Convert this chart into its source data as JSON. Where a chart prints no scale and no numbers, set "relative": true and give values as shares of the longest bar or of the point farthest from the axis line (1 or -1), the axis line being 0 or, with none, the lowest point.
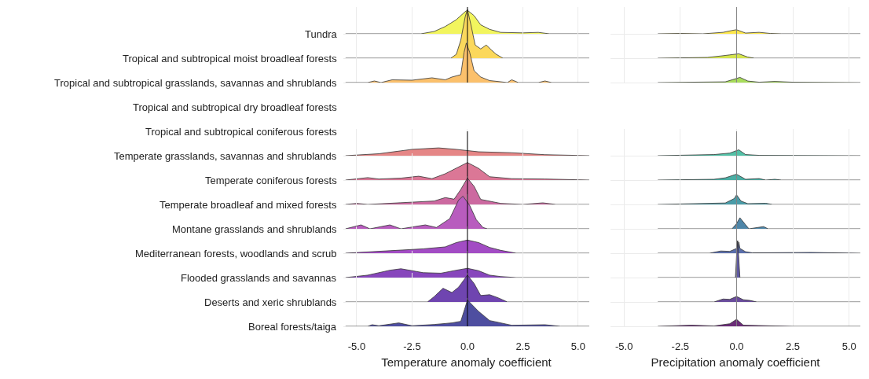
{
  "chart_data": [
    {
      "type": "area",
      "relative": true,
      "ylabel": "Tundra",
      "grid": "x",
      "tick_labels": false,
      "color": "#f2f55e",
      "xlim": [
        -5.6,
        5.5
      ],
      "xticks": [
        -5,
        -2.5,
        0,
        2.5,
        5
      ],
      "ref_lines": [
        {
          "axis": "x",
          "value": 0,
          "color": "#000000"
        }
      ],
      "x": [
        -5.5,
        -2.1,
        -1.5,
        -1.0,
        -0.5,
        -0.1,
        0,
        0.3,
        0.6,
        1.0,
        1.5,
        2.5,
        3.2,
        3.7,
        5.5
      ],
      "values": [
        0,
        0,
        0.1,
        0.31,
        0.6,
        0.94,
        1,
        0.77,
        0.38,
        0.19,
        0.06,
        0.04,
        0.06,
        0,
        0
      ]
    },
    {
      "type": "area",
      "relative": true,
      "ylabel": "Tropical and subtropical moist broadleaf forests",
      "grid": "x",
      "tick_labels": false,
      "color": "#fbd85c",
      "xlim": [
        -5.6,
        5.5
      ],
      "xticks": [
        -5,
        -2.5,
        0,
        2.5,
        5
      ],
      "ref_lines": [
        {
          "axis": "x",
          "value": 0,
          "color": "#000000"
        }
      ],
      "x": [
        -5.5,
        -0.75,
        -0.5,
        -0.3,
        -0.1,
        0,
        0.15,
        0.35,
        0.6,
        0.85,
        1.1,
        1.3,
        1.6,
        5.5
      ],
      "values": [
        0,
        0,
        0.08,
        0.37,
        0.85,
        1.0,
        0.7,
        0.27,
        0.19,
        0.27,
        0.16,
        0.08,
        0,
        0
      ]
    },
    {
      "type": "area",
      "relative": true,
      "ylabel": "Tropical and subtropical grasslands, savannas and shrublands",
      "grid": "x",
      "tick_labels": false,
      "color": "#fbc06c",
      "xlim": [
        -5.6,
        5.5
      ],
      "xticks": [
        -5,
        -2.5,
        0,
        2.5,
        5
      ],
      "ref_lines": [
        {
          "axis": "x",
          "value": 0,
          "color": "#000000"
        }
      ],
      "x": [
        -5.5,
        -4.5,
        -4.2,
        -3.9,
        -3.4,
        -2.5,
        -1.6,
        -1.0,
        -0.7,
        -0.3,
        -0.15,
        -0.05,
        0.1,
        0.3,
        0.6,
        1.0,
        1.5,
        1.8,
        2.0,
        2.3,
        3.2,
        3.5,
        3.8,
        5.5
      ],
      "values": [
        0,
        0,
        0.04,
        0,
        0.07,
        0.06,
        0.12,
        0.07,
        0.14,
        0.2,
        0.77,
        1,
        0.77,
        0.3,
        0.14,
        0.05,
        0.02,
        0,
        0.07,
        0,
        0,
        0.04,
        0,
        0
      ]
    },
    {
      "type": "other",
      "ylabel": "Tropical and subtropical dry broadleaf forests"
    },
    {
      "type": "other",
      "ylabel": "Tropical and subtropical coniferous forests"
    },
    {
      "type": "area",
      "relative": true,
      "ylabel": "Temperate grasslands, savannas and shrublands",
      "grid": "x",
      "tick_labels": false,
      "color": "#e58686",
      "xlim": [
        -5.6,
        5.5
      ],
      "xticks": [
        -5,
        -2.5,
        0,
        2.5,
        5
      ],
      "ref_lines": [
        {
          "axis": "x",
          "value": 0,
          "color": "#000000"
        }
      ],
      "x": [
        -5.5,
        -4.0,
        -2.5,
        -1.3,
        -0.5,
        0.5,
        2.0,
        3.5,
        5.5
      ],
      "values": [
        0,
        0.25,
        0.81,
        1,
        0.81,
        0.5,
        0.38,
        0.13,
        0
      ]
    },
    {
      "type": "area",
      "relative": true,
      "ylabel": "Temperate coniferous forests",
      "grid": "x",
      "tick_labels": false,
      "color": "#db7796",
      "xlim": [
        -5.6,
        5.5
      ],
      "xticks": [
        -5,
        -2.5,
        0,
        2.5,
        5
      ],
      "ref_lines": [
        {
          "axis": "x",
          "value": 0,
          "color": "#000000"
        }
      ],
      "x": [
        -5.5,
        -4.5,
        -4.0,
        -3.0,
        -2.2,
        -1.6,
        -1.0,
        0,
        0.5,
        1.0,
        2.0,
        3.5,
        5.5
      ],
      "values": [
        0,
        0.14,
        0.06,
        0.11,
        0.22,
        0.08,
        0.36,
        1,
        0.67,
        0.19,
        0.08,
        0.06,
        0
      ]
    },
    {
      "type": "area",
      "relative": true,
      "ylabel": "Temperate broadleaf and mixed forests",
      "grid": "x",
      "tick_labels": false,
      "color": "#cc69a0",
      "xlim": [
        -5.6,
        5.5
      ],
      "xticks": [
        -5,
        -2.5,
        0,
        2.5,
        5
      ],
      "ref_lines": [
        {
          "axis": "x",
          "value": 0,
          "color": "#000000"
        }
      ],
      "x": [
        -5.5,
        -5.0,
        -4.5,
        -1.5,
        -1.0,
        -0.6,
        -0.3,
        0,
        0.3,
        0.6,
        1.5,
        2.5,
        3.4,
        4.0,
        5.5
      ],
      "values": [
        0,
        0.04,
        0,
        0.13,
        0.26,
        0.2,
        0.57,
        1,
        0.69,
        0.19,
        0.04,
        0,
        0.06,
        0,
        0
      ]
    },
    {
      "type": "area",
      "relative": true,
      "ylabel": "Montane grasslands and shrublands",
      "grid": "x",
      "tick_labels": false,
      "color": "#b85cbe",
      "xlim": [
        -5.6,
        5.5
      ],
      "xticks": [
        -5,
        -2.5,
        0,
        2.5,
        5
      ],
      "ref_lines": [
        {
          "axis": "x",
          "value": 0,
          "color": "#000000"
        }
      ],
      "x": [
        -5.5,
        -4.8,
        -4.4,
        -3.5,
        -3.0,
        -1.9,
        -1.4,
        -0.8,
        -0.4,
        -0.2,
        0.1,
        0.4,
        0.7,
        0.9,
        5.5
      ],
      "values": [
        0,
        0.12,
        0,
        0.12,
        0,
        0.12,
        0.04,
        0.31,
        0.88,
        1,
        0.72,
        0.28,
        0.04,
        0,
        0
      ]
    },
    {
      "type": "area",
      "relative": true,
      "ylabel": "Mediterranean forests, woodlands and scrub",
      "grid": "x",
      "tick_labels": false,
      "color": "#a24cc4",
      "xlim": [
        -5.6,
        5.5
      ],
      "xticks": [
        -5,
        -2.5,
        0,
        2.5,
        5
      ],
      "ref_lines": [
        {
          "axis": "x",
          "value": 0,
          "color": "#000000"
        }
      ],
      "x": [
        -5.5,
        -3.5,
        -2.0,
        -1.0,
        -0.5,
        0,
        0.5,
        1.0,
        1.5,
        2.2,
        5.5
      ],
      "values": [
        0,
        0.19,
        0.33,
        0.48,
        0.81,
        1,
        0.81,
        0.44,
        0.22,
        0,
        0
      ]
    },
    {
      "type": "area",
      "relative": true,
      "ylabel": "Flooded grasslands and savannas",
      "grid": "x",
      "tick_labels": false,
      "color": "#8746bc",
      "xlim": [
        -5.6,
        5.5
      ],
      "xticks": [
        -5,
        -2.5,
        0,
        2.5,
        5
      ],
      "ref_lines": [
        {
          "axis": "x",
          "value": 0,
          "color": "#000000"
        }
      ],
      "x": [
        -5.5,
        -4.5,
        -3.5,
        -3.0,
        -2.0,
        -1.2,
        -0.5,
        0,
        0.5,
        1.0,
        1.5,
        2.2,
        5.5
      ],
      "values": [
        0,
        0.26,
        0.79,
        0.95,
        0.53,
        0.47,
        0.79,
        1,
        0.74,
        0.26,
        0.11,
        0,
        0
      ]
    },
    {
      "type": "area",
      "relative": true,
      "ylabel": "Deserts and xeric shrublands",
      "grid": "x",
      "tick_labels": false,
      "color": "#6f45b0",
      "xlim": [
        -5.6,
        5.5
      ],
      "xticks": [
        -5,
        -2.5,
        0,
        2.5,
        5
      ],
      "ref_lines": [
        {
          "axis": "x",
          "value": 0,
          "color": "#000000"
        }
      ],
      "x": [
        -5.5,
        -1.8,
        -1.5,
        -1.1,
        -0.7,
        -0.4,
        0,
        0.3,
        0.6,
        1.0,
        1.4,
        1.8,
        5.5
      ],
      "values": [
        0,
        0,
        0.2,
        0.51,
        0.35,
        0.55,
        1,
        0.69,
        0.24,
        0.27,
        0.15,
        0,
        0
      ]
    },
    {
      "type": "area",
      "relative": true,
      "ylabel": "Boreal forests/taiga",
      "xlabel": "Temperature anomaly coefficient",
      "grid": "x",
      "tick_labels": "x",
      "color": "#4e4ea0",
      "xlim": [
        -5.6,
        5.5
      ],
      "xticks": [
        {
          "value": -5,
          "label": "-5.0"
        },
        {
          "value": -2.5,
          "label": "-2.5"
        },
        {
          "value": 0,
          "label": "0.0"
        },
        {
          "value": 2.5,
          "label": "2.5"
        },
        {
          "value": 5,
          "label": "5.0"
        }
      ],
      "ref_lines": [
        {
          "axis": "x",
          "value": 0,
          "color": "#000000"
        }
      ],
      "x": [
        -5.5,
        -4.5,
        -4.3,
        -4.0,
        -3.1,
        -2.5,
        -1.5,
        -0.7,
        -0.3,
        -0.1,
        0,
        0.5,
        1.0,
        1.5,
        2.0,
        3.5,
        4.2,
        5.5
      ],
      "values": [
        0,
        0,
        0.06,
        0.02,
        0.13,
        0.02,
        0.07,
        0.13,
        0.19,
        0.72,
        1,
        0.57,
        0.22,
        0.13,
        0.04,
        0.06,
        0,
        0
      ]
    },
    {
      "type": "area",
      "relative": true,
      "grid": "x",
      "tick_labels": false,
      "color": "#fde74c",
      "xlim": [
        -5.6,
        5.5
      ],
      "xticks": [
        -5,
        -2.5,
        0,
        2.5,
        5
      ],
      "ref_lines": [
        {
          "axis": "x",
          "value": 0,
          "color": "#808080"
        }
      ],
      "x": [
        -3.5,
        -2.5,
        -1.5,
        -0.6,
        -0.2,
        0,
        0.4,
        1.0,
        1.5,
        2.0,
        5.5
      ],
      "values": [
        0,
        0.09,
        0,
        0.36,
        0.82,
        1,
        0.18,
        0.36,
        0.09,
        0,
        0
      ]
    },
    {
      "type": "area",
      "relative": true,
      "grid": "x",
      "tick_labels": false,
      "color": "#d4e44e",
      "xlim": [
        -5.6,
        5.5
      ],
      "xticks": [
        -5,
        -2.5,
        0,
        2.5,
        5
      ],
      "ref_lines": [
        {
          "axis": "x",
          "value": 0,
          "color": "#808080"
        }
      ],
      "x": [
        -3.5,
        -1.3,
        -0.7,
        -0.3,
        0.1,
        0.5,
        0.8,
        5.5
      ],
      "values": [
        0,
        0.17,
        0.5,
        0.75,
        1,
        0.25,
        0,
        0
      ]
    },
    {
      "type": "area",
      "relative": true,
      "grid": "x",
      "tick_labels": false,
      "color": "#a8dc5a",
      "xlim": [
        -5.6,
        5.5
      ],
      "xticks": [
        -5,
        -2.5,
        0,
        2.5,
        5
      ],
      "ref_lines": [
        {
          "axis": "x",
          "value": 0,
          "color": "#808080"
        }
      ],
      "x": [
        -3.5,
        -0.5,
        0,
        0.15,
        0.5,
        1.0,
        1.7,
        2.5,
        5.5
      ],
      "values": [
        0,
        0.14,
        0.79,
        1,
        0.29,
        0.07,
        0.21,
        0.07,
        0
      ]
    },
    {
      "type": "area",
      "relative": true,
      "grid": "x",
      "tick_labels": false,
      "color": "#53c0a6",
      "xlim": [
        -5.6,
        5.5
      ],
      "xticks": [
        -5,
        -2.5,
        0,
        2.5,
        5
      ],
      "ref_lines": [
        {
          "axis": "x",
          "value": 0,
          "color": "#808080"
        }
      ],
      "x": [
        -3.5,
        -1.0,
        -0.3,
        0.1,
        0.4,
        1.0,
        5.5
      ],
      "values": [
        0,
        0.19,
        0.44,
        1,
        0.19,
        0.06,
        0
      ]
    },
    {
      "type": "area",
      "relative": true,
      "grid": "x",
      "tick_labels": false,
      "color": "#4aaea4",
      "xlim": [
        -5.6,
        5.5
      ],
      "xticks": [
        -5,
        -2.5,
        0,
        2.5,
        5
      ],
      "ref_lines": [
        {
          "axis": "x",
          "value": 0,
          "color": "#808080"
        }
      ],
      "x": [
        -3.5,
        -1.0,
        -0.5,
        0,
        0.4,
        1.0,
        1.3,
        1.7,
        2.0,
        5.5
      ],
      "values": [
        0,
        0.13,
        0.38,
        1,
        0.13,
        0.25,
        0,
        0.13,
        0,
        0
      ]
    },
    {
      "type": "area",
      "relative": true,
      "grid": "x",
      "tick_labels": false,
      "color": "#4a9ca8",
      "xlim": [
        -5.6,
        5.5
      ],
      "xticks": [
        -5,
        -2.5,
        0,
        2.5,
        5
      ],
      "ref_lines": [
        {
          "axis": "x",
          "value": 0,
          "color": "#808080"
        }
      ],
      "x": [
        -3.5,
        -0.5,
        -0.1,
        0,
        0.2,
        0.5,
        1.3,
        1.6,
        5.5
      ],
      "values": [
        0,
        0.15,
        0.62,
        1,
        0.35,
        0.08,
        0.12,
        0,
        0
      ]
    },
    {
      "type": "area",
      "relative": true,
      "grid": "x",
      "tick_labels": false,
      "color": "#4f86a8",
      "xlim": [
        -5.6,
        5.5
      ],
      "xticks": [
        -5,
        -2.5,
        0,
        2.5,
        5
      ],
      "ref_lines": [
        {
          "axis": "x",
          "value": 0,
          "color": "#808080"
        }
      ],
      "x": [
        -3.5,
        -0.2,
        0,
        0.15,
        0.4,
        0.55,
        1.2,
        1.4,
        5.5
      ],
      "values": [
        0,
        0,
        0.47,
        1,
        0.37,
        0,
        0.2,
        0,
        0
      ]
    },
    {
      "type": "area",
      "relative": true,
      "grid": "x",
      "tick_labels": false,
      "color": "#5a6eaa",
      "xlim": [
        -5.6,
        5.5
      ],
      "xticks": [
        -5,
        -2.5,
        0,
        2.5,
        5
      ],
      "ref_lines": [
        {
          "axis": "x",
          "value": 0,
          "color": "#808080"
        }
      ],
      "x": [
        -3.5,
        -1.2,
        -0.7,
        -0.3,
        0,
        0.03,
        0.07,
        0.1,
        0.15,
        0.4,
        0.7,
        3.3,
        5.5
      ],
      "values": [
        0,
        0,
        0.18,
        0.15,
        0.39,
        1,
        0.39,
        0.91,
        0.39,
        0.12,
        0.03,
        0.06,
        0
      ]
    },
    {
      "type": "area",
      "relative": true,
      "grid": "x",
      "tick_labels": false,
      "color": "#5f5aa4",
      "xlim": [
        -5.6,
        5.5
      ],
      "xticks": [
        -5,
        -2.5,
        0,
        2.5,
        5
      ],
      "ref_lines": [
        {
          "axis": "x",
          "value": 0,
          "color": "#808080"
        }
      ],
      "x": [
        -3.5,
        -0.05,
        0,
        0.05,
        0.15,
        5.5
      ],
      "values": [
        0,
        0,
        0.58,
        1.0,
        0,
        0
      ]
    },
    {
      "type": "area",
      "relative": true,
      "grid": "x",
      "tick_labels": false,
      "color": "#6a4c9c",
      "xlim": [
        -5.6,
        5.5
      ],
      "xticks": [
        -5,
        -2.5,
        0,
        2.5,
        5
      ],
      "ref_lines": [
        {
          "axis": "x",
          "value": 0,
          "color": "#808080"
        }
      ],
      "x": [
        -3.5,
        -1.0,
        -0.6,
        -0.3,
        0,
        0.3,
        0.6,
        0.9,
        5.5
      ],
      "values": [
        0,
        0,
        0.53,
        0.47,
        1,
        0.4,
        0.27,
        0,
        0
      ]
    },
    {
      "type": "area",
      "relative": true,
      "xlabel": "Precipitation anomaly coefficient",
      "grid": "x",
      "tick_labels": "x",
      "color": "#6b2c78",
      "xlim": [
        -5.6,
        5.5
      ],
      "xticks": [
        {
          "value": -5,
          "label": "-5.0"
        },
        {
          "value": -2.5,
          "label": "-2.5"
        },
        {
          "value": 0,
          "label": "0.0"
        },
        {
          "value": 2.5,
          "label": "2.5"
        },
        {
          "value": 5,
          "label": "5.0"
        }
      ],
      "ref_lines": [
        {
          "axis": "x",
          "value": 0,
          "color": "#808080"
        }
      ],
      "x": [
        -3.5,
        -2.0,
        -1.0,
        -0.3,
        0,
        0.3,
        1.7,
        2.5,
        5.5
      ],
      "values": [
        0,
        0.16,
        0.05,
        0.37,
        1,
        0.16,
        0.05,
        0,
        0
      ]
    }
  ]
}
